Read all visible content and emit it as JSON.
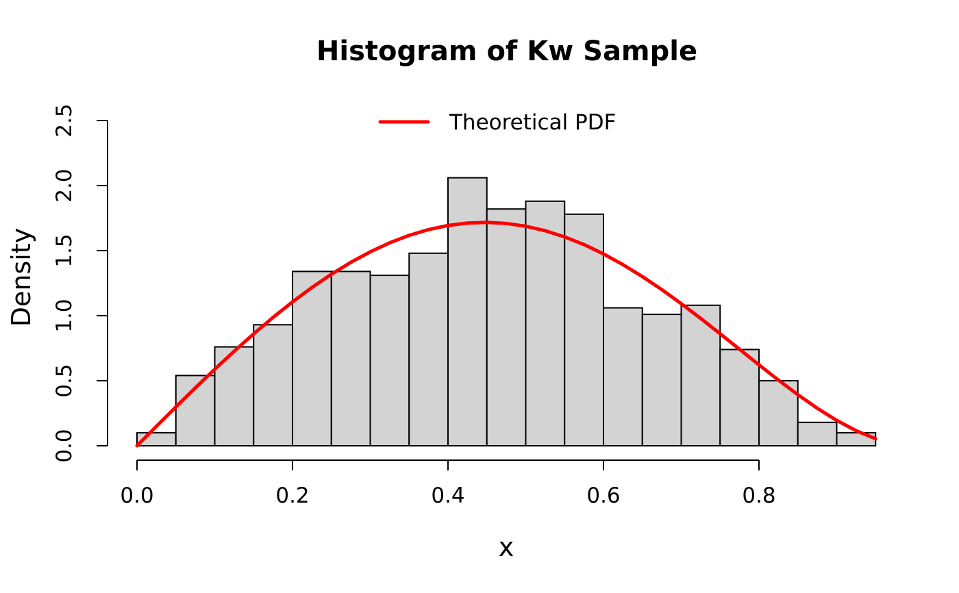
{
  "title": "Histogram of Kw Sample",
  "axes": {
    "x_label": "x",
    "y_label": "Density",
    "x_ticks": [
      "0.0",
      "0.2",
      "0.4",
      "0.6",
      "0.8"
    ],
    "x_tick_values": [
      0.0,
      0.2,
      0.4,
      0.6,
      0.8
    ],
    "y_ticks": [
      "0.0",
      "0.5",
      "1.0",
      "1.5",
      "2.0",
      "2.5"
    ],
    "y_tick_values": [
      0.0,
      0.5,
      1.0,
      1.5,
      2.0,
      2.5
    ]
  },
  "legend": {
    "label": "Theoretical PDF",
    "position": "top-center"
  },
  "colors": {
    "bar_fill": "#d3d3d3",
    "bar_stroke": "#000000",
    "curve": "#ff0000",
    "axis": "#000000",
    "background": "#ffffff"
  },
  "chart_data": {
    "type": "bar",
    "subtype": "density-histogram-with-curve",
    "title": "Histogram of Kw Sample",
    "xlabel": "x",
    "ylabel": "Density",
    "xlim": [
      0.0,
      0.95
    ],
    "ylim": [
      0.0,
      2.5
    ],
    "grid": false,
    "legend_position": "top-center",
    "bins": {
      "start": 0.0,
      "width": 0.05,
      "edges": [
        0.0,
        0.05,
        0.1,
        0.15,
        0.2,
        0.25,
        0.3,
        0.35,
        0.4,
        0.45,
        0.5,
        0.55,
        0.6,
        0.65,
        0.7,
        0.75,
        0.8,
        0.85,
        0.9,
        0.95
      ],
      "densities": [
        0.1,
        0.54,
        0.76,
        0.93,
        1.34,
        1.34,
        1.31,
        1.48,
        2.06,
        1.82,
        1.88,
        1.78,
        1.06,
        1.01,
        1.08,
        0.74,
        0.5,
        0.18,
        0.1
      ]
    },
    "curve": {
      "name": "Theoretical PDF",
      "points": [
        [
          0.0,
          0.0
        ],
        [
          0.025,
          0.1498
        ],
        [
          0.05,
          0.2985
        ],
        [
          0.075,
          0.445
        ],
        [
          0.1,
          0.5881
        ],
        [
          0.125,
          0.7267
        ],
        [
          0.15,
          0.8599
        ],
        [
          0.175,
          0.9867
        ],
        [
          0.2,
          1.1059
        ],
        [
          0.225,
          1.2166
        ],
        [
          0.25,
          1.3184
        ],
        [
          0.275,
          1.4099
        ],
        [
          0.3,
          1.4906
        ],
        [
          0.325,
          1.56
        ],
        [
          0.35,
          1.6171
        ],
        [
          0.375,
          1.6617
        ],
        [
          0.4,
          1.6934
        ],
        [
          0.425,
          1.7119
        ],
        [
          0.45,
          1.7172
        ],
        [
          0.475,
          1.7089
        ],
        [
          0.5,
          1.6875
        ],
        [
          0.525,
          1.6532
        ],
        [
          0.55,
          1.6055
        ],
        [
          0.575,
          1.5464
        ],
        [
          0.6,
          1.4746
        ],
        [
          0.625,
          1.3924
        ],
        [
          0.65,
          1.3007
        ],
        [
          0.675,
          1.2002
        ],
        [
          0.7,
          1.0924
        ],
        [
          0.725,
          0.9788
        ],
        [
          0.75,
          0.8613
        ],
        [
          0.775,
          0.7417
        ],
        [
          0.8,
          0.6221
        ],
        [
          0.825,
          0.5048
        ],
        [
          0.85,
          0.3927
        ],
        [
          0.875,
          0.2884
        ],
        [
          0.9,
          0.1949
        ],
        [
          0.925,
          0.1157
        ],
        [
          0.95,
          0.0542
        ]
      ]
    }
  }
}
